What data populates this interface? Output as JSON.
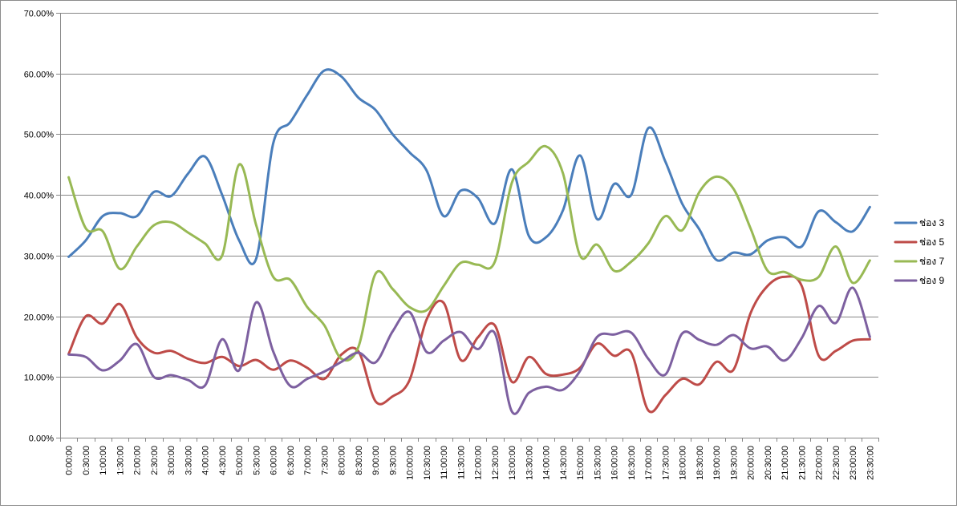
{
  "chart_data": {
    "type": "line",
    "title": "",
    "xlabel": "",
    "ylabel": "",
    "ylim": [
      0,
      70
    ],
    "y_tick_values": [
      0,
      10,
      20,
      30,
      40,
      50,
      60,
      70
    ],
    "y_tick_labels": [
      "0.00%",
      "10.00%",
      "20.00%",
      "30.00%",
      "40.00%",
      "50.00%",
      "60.00%",
      "70.00%"
    ],
    "grid": "horizontal major gridlines",
    "legend_position": "right",
    "smooth": true,
    "categories": [
      "0:00:00",
      "0:30:00",
      "1:00:00",
      "1:30:00",
      "2:00:00",
      "2:30:00",
      "3:00:00",
      "3:30:00",
      "4:00:00",
      "4:30:00",
      "5:00:00",
      "5:30:00",
      "6:00:00",
      "6:30:00",
      "7:00:00",
      "7:30:00",
      "8:00:00",
      "8:30:00",
      "9:00:00",
      "9:30:00",
      "10:00:00",
      "10:30:00",
      "11:00:00",
      "11:30:00",
      "12:00:00",
      "12:30:00",
      "13:00:00",
      "13:30:00",
      "14:00:00",
      "14:30:00",
      "15:00:00",
      "15:30:00",
      "16:00:00",
      "16:30:00",
      "17:00:00",
      "17:30:00",
      "18:00:00",
      "18:30:00",
      "19:00:00",
      "19:30:00",
      "20:00:00",
      "20:30:00",
      "21:00:00",
      "21:30:00",
      "22:00:00",
      "22:30:00",
      "23:00:00",
      "23:30:00"
    ],
    "series": [
      {
        "name": "ช่อง 3",
        "color": "#4a7ebb",
        "values": [
          29.8,
          32.5,
          36.5,
          37.0,
          36.5,
          40.5,
          39.8,
          43.5,
          46.3,
          40.0,
          32.5,
          29.5,
          48.5,
          52.0,
          56.5,
          60.5,
          59.5,
          56.0,
          54.0,
          50.0,
          47.0,
          44.0,
          36.5,
          40.7,
          39.5,
          35.3,
          44.2,
          33.2,
          33.0,
          37.5,
          46.5,
          36.0,
          41.8,
          40.0,
          51.0,
          45.5,
          38.5,
          34.3,
          29.3,
          30.5,
          30.2,
          32.5,
          33.0,
          31.5,
          37.3,
          35.5,
          34.0,
          38.0
        ]
      },
      {
        "name": "ช่อง 5",
        "color": "#be4b48",
        "values": [
          13.8,
          20.0,
          18.8,
          22.0,
          16.5,
          14.0,
          14.3,
          13.0,
          12.3,
          13.3,
          11.8,
          12.8,
          11.2,
          12.7,
          11.5,
          9.7,
          13.7,
          14.2,
          6.0,
          6.8,
          9.5,
          19.5,
          22.2,
          12.8,
          16.5,
          18.5,
          9.2,
          13.3,
          10.5,
          10.4,
          11.5,
          15.5,
          13.5,
          14.0,
          4.5,
          7.0,
          9.7,
          8.8,
          12.5,
          11.2,
          20.5,
          25.0,
          26.5,
          25.0,
          13.5,
          14.3,
          16.0,
          16.2
        ]
      },
      {
        "name": "ช่อง 7",
        "color": "#98b954",
        "values": [
          42.9,
          34.5,
          34.0,
          27.8,
          31.5,
          35.0,
          35.5,
          33.8,
          32.0,
          30.0,
          45.0,
          35.0,
          26.5,
          26.0,
          21.5,
          18.5,
          13.0,
          15.0,
          27.0,
          24.5,
          21.5,
          21.0,
          25.0,
          28.8,
          28.5,
          29.0,
          42.0,
          45.5,
          48.0,
          43.5,
          30.0,
          31.8,
          27.5,
          29.0,
          32.0,
          36.5,
          34.2,
          40.5,
          43.0,
          41.0,
          34.5,
          27.5,
          27.3,
          26.0,
          26.5,
          31.5,
          25.5,
          29.2
        ]
      },
      {
        "name": "ช่อง 9",
        "color": "#7d60a0",
        "values": [
          13.7,
          13.3,
          11.1,
          12.7,
          15.4,
          10.0,
          10.3,
          9.5,
          8.6,
          16.2,
          11.1,
          22.3,
          14.2,
          8.5,
          9.7,
          10.9,
          12.5,
          14.0,
          12.4,
          17.5,
          20.7,
          14.1,
          16.0,
          17.4,
          14.6,
          17.2,
          4.3,
          7.4,
          8.4,
          7.9,
          11.0,
          16.6,
          17.0,
          17.3,
          13.0,
          10.4,
          17.2,
          16.1,
          15.3,
          16.9,
          14.7,
          15.0,
          12.7,
          16.4,
          21.7,
          18.9,
          24.7,
          16.6
        ]
      }
    ]
  }
}
